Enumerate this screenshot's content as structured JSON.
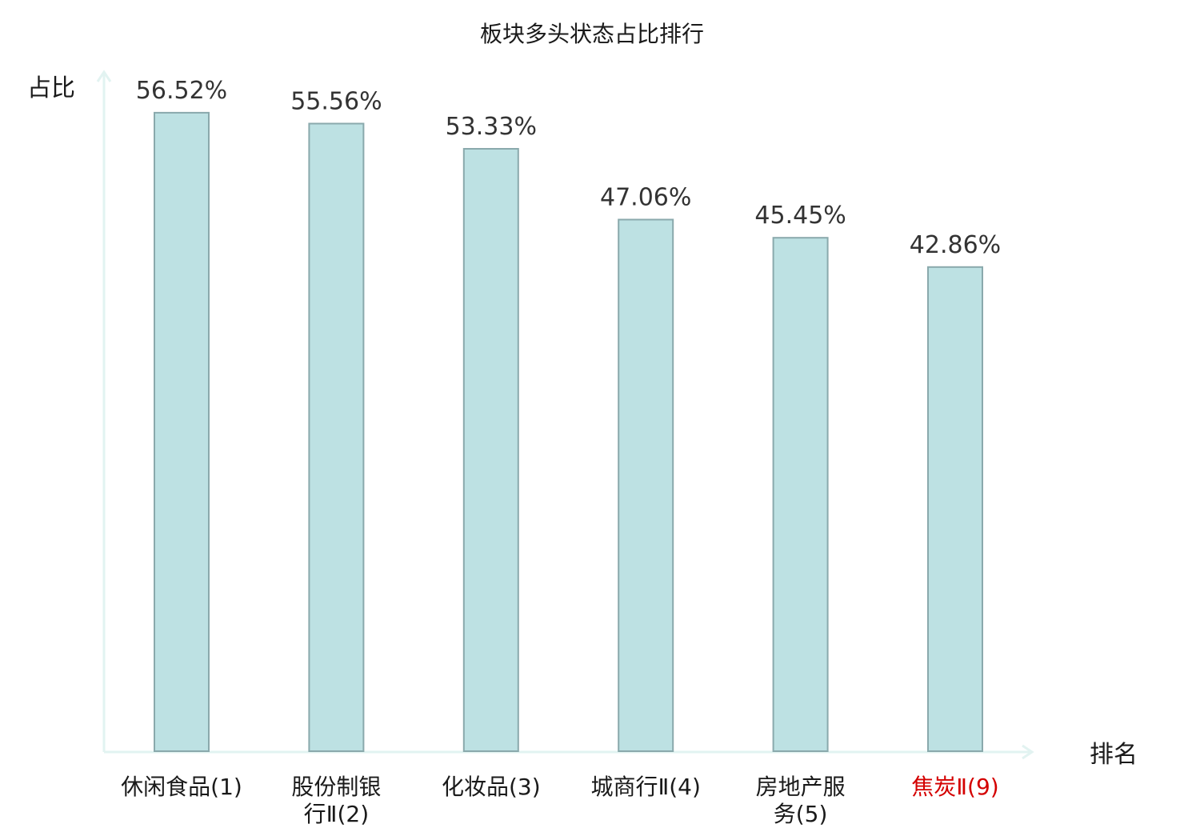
{
  "chart_data": {
    "type": "bar",
    "title": "板块多头状态占比排行",
    "ylabel": "占比",
    "xlabel": "排名",
    "categories": [
      [
        "休闲食品(1)"
      ],
      [
        "股份制银",
        "行Ⅱ(2)"
      ],
      [
        "化妆品(3)"
      ],
      [
        "城商行Ⅱ(4)"
      ],
      [
        "房地产服",
        "务(5)"
      ],
      [
        "焦炭Ⅱ(9)"
      ]
    ],
    "values": [
      56.52,
      55.56,
      53.33,
      47.06,
      45.45,
      42.86
    ],
    "value_labels": [
      "56.52%",
      "55.56%",
      "53.33%",
      "47.06%",
      "45.45%",
      "42.86%"
    ],
    "category_colors": [
      "#1a1a1a",
      "#1a1a1a",
      "#1a1a1a",
      "#1a1a1a",
      "#1a1a1a",
      "#d40000"
    ],
    "ylim": [
      0,
      60
    ],
    "grid": false,
    "legend": false,
    "colors": {
      "bar_fill": "#bde1e3",
      "bar_stroke": "#8aa9ac",
      "axis": "#e2f3f1"
    }
  }
}
